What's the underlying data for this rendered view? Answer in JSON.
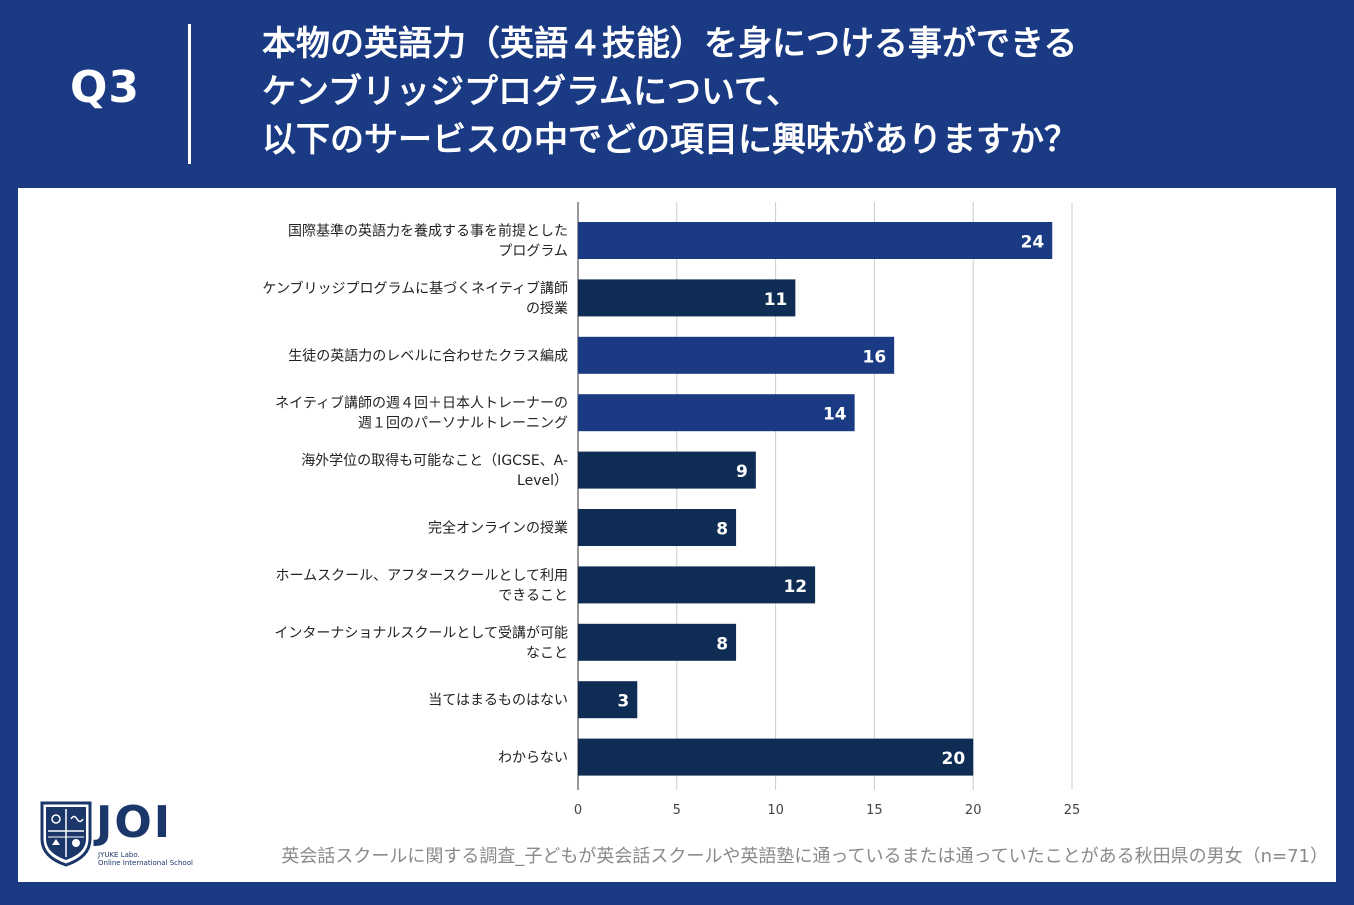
{
  "header": {
    "q_label": "Q3",
    "title_lines": [
      "本物の英語力（英語４技能）を身につける事ができる",
      "ケンブリッジプログラムについて、",
      "以下のサービスの中でどの項目に興味がありますか？"
    ]
  },
  "chart_data": {
    "type": "bar",
    "orientation": "horizontal",
    "categories": [
      [
        "国際基準の英語力を養成する事を前提とした",
        "プログラム"
      ],
      [
        "ケンブリッジプログラムに基づくネイティブ講師",
        "の授業"
      ],
      [
        "生徒の英語力のレベルに合わせたクラス編成"
      ],
      [
        "ネイティブ講師の週４回＋日本人トレーナーの",
        "週１回のパーソナルトレーニング"
      ],
      [
        "海外学位の取得も可能なこと（IGCSE、A-",
        "Level）"
      ],
      [
        "完全オンラインの授業"
      ],
      [
        "ホームスクール、アフタースクールとして利用",
        "できること"
      ],
      [
        "インターナショナルスクールとして受講が可能",
        "なこと"
      ],
      [
        "当てはまるものはない"
      ],
      [
        "わからない"
      ]
    ],
    "values": [
      24,
      11,
      16,
      14,
      9,
      8,
      12,
      8,
      3,
      20
    ],
    "bar_colors": [
      "#1b3a84",
      "#0e2c54",
      "#1b3a84",
      "#1b3a84",
      "#0e2c54",
      "#0e2c54",
      "#0e2c54",
      "#0e2c54",
      "#0e2c54",
      "#0e2c54"
    ],
    "xlim": [
      0,
      25
    ],
    "xticks": [
      0,
      5,
      10,
      15,
      20,
      25
    ],
    "grid": true,
    "title": "",
    "xlabel": "",
    "ylabel": ""
  },
  "logo": {
    "text": "JOI",
    "sub_line1": "JYUKE Labo.",
    "sub_line2": "Online International School"
  },
  "footnote": "英会話スクールに関する調査_子どもが英会話スクールや英語塾に通っているまたは通っていたことがある秋田県の男女（n=71）",
  "colors": {
    "background": "#1a3a84",
    "panel": "#ffffff",
    "bar_primary": "#1b3a84",
    "bar_dark": "#0e2c54",
    "grid": "#cccccc"
  }
}
